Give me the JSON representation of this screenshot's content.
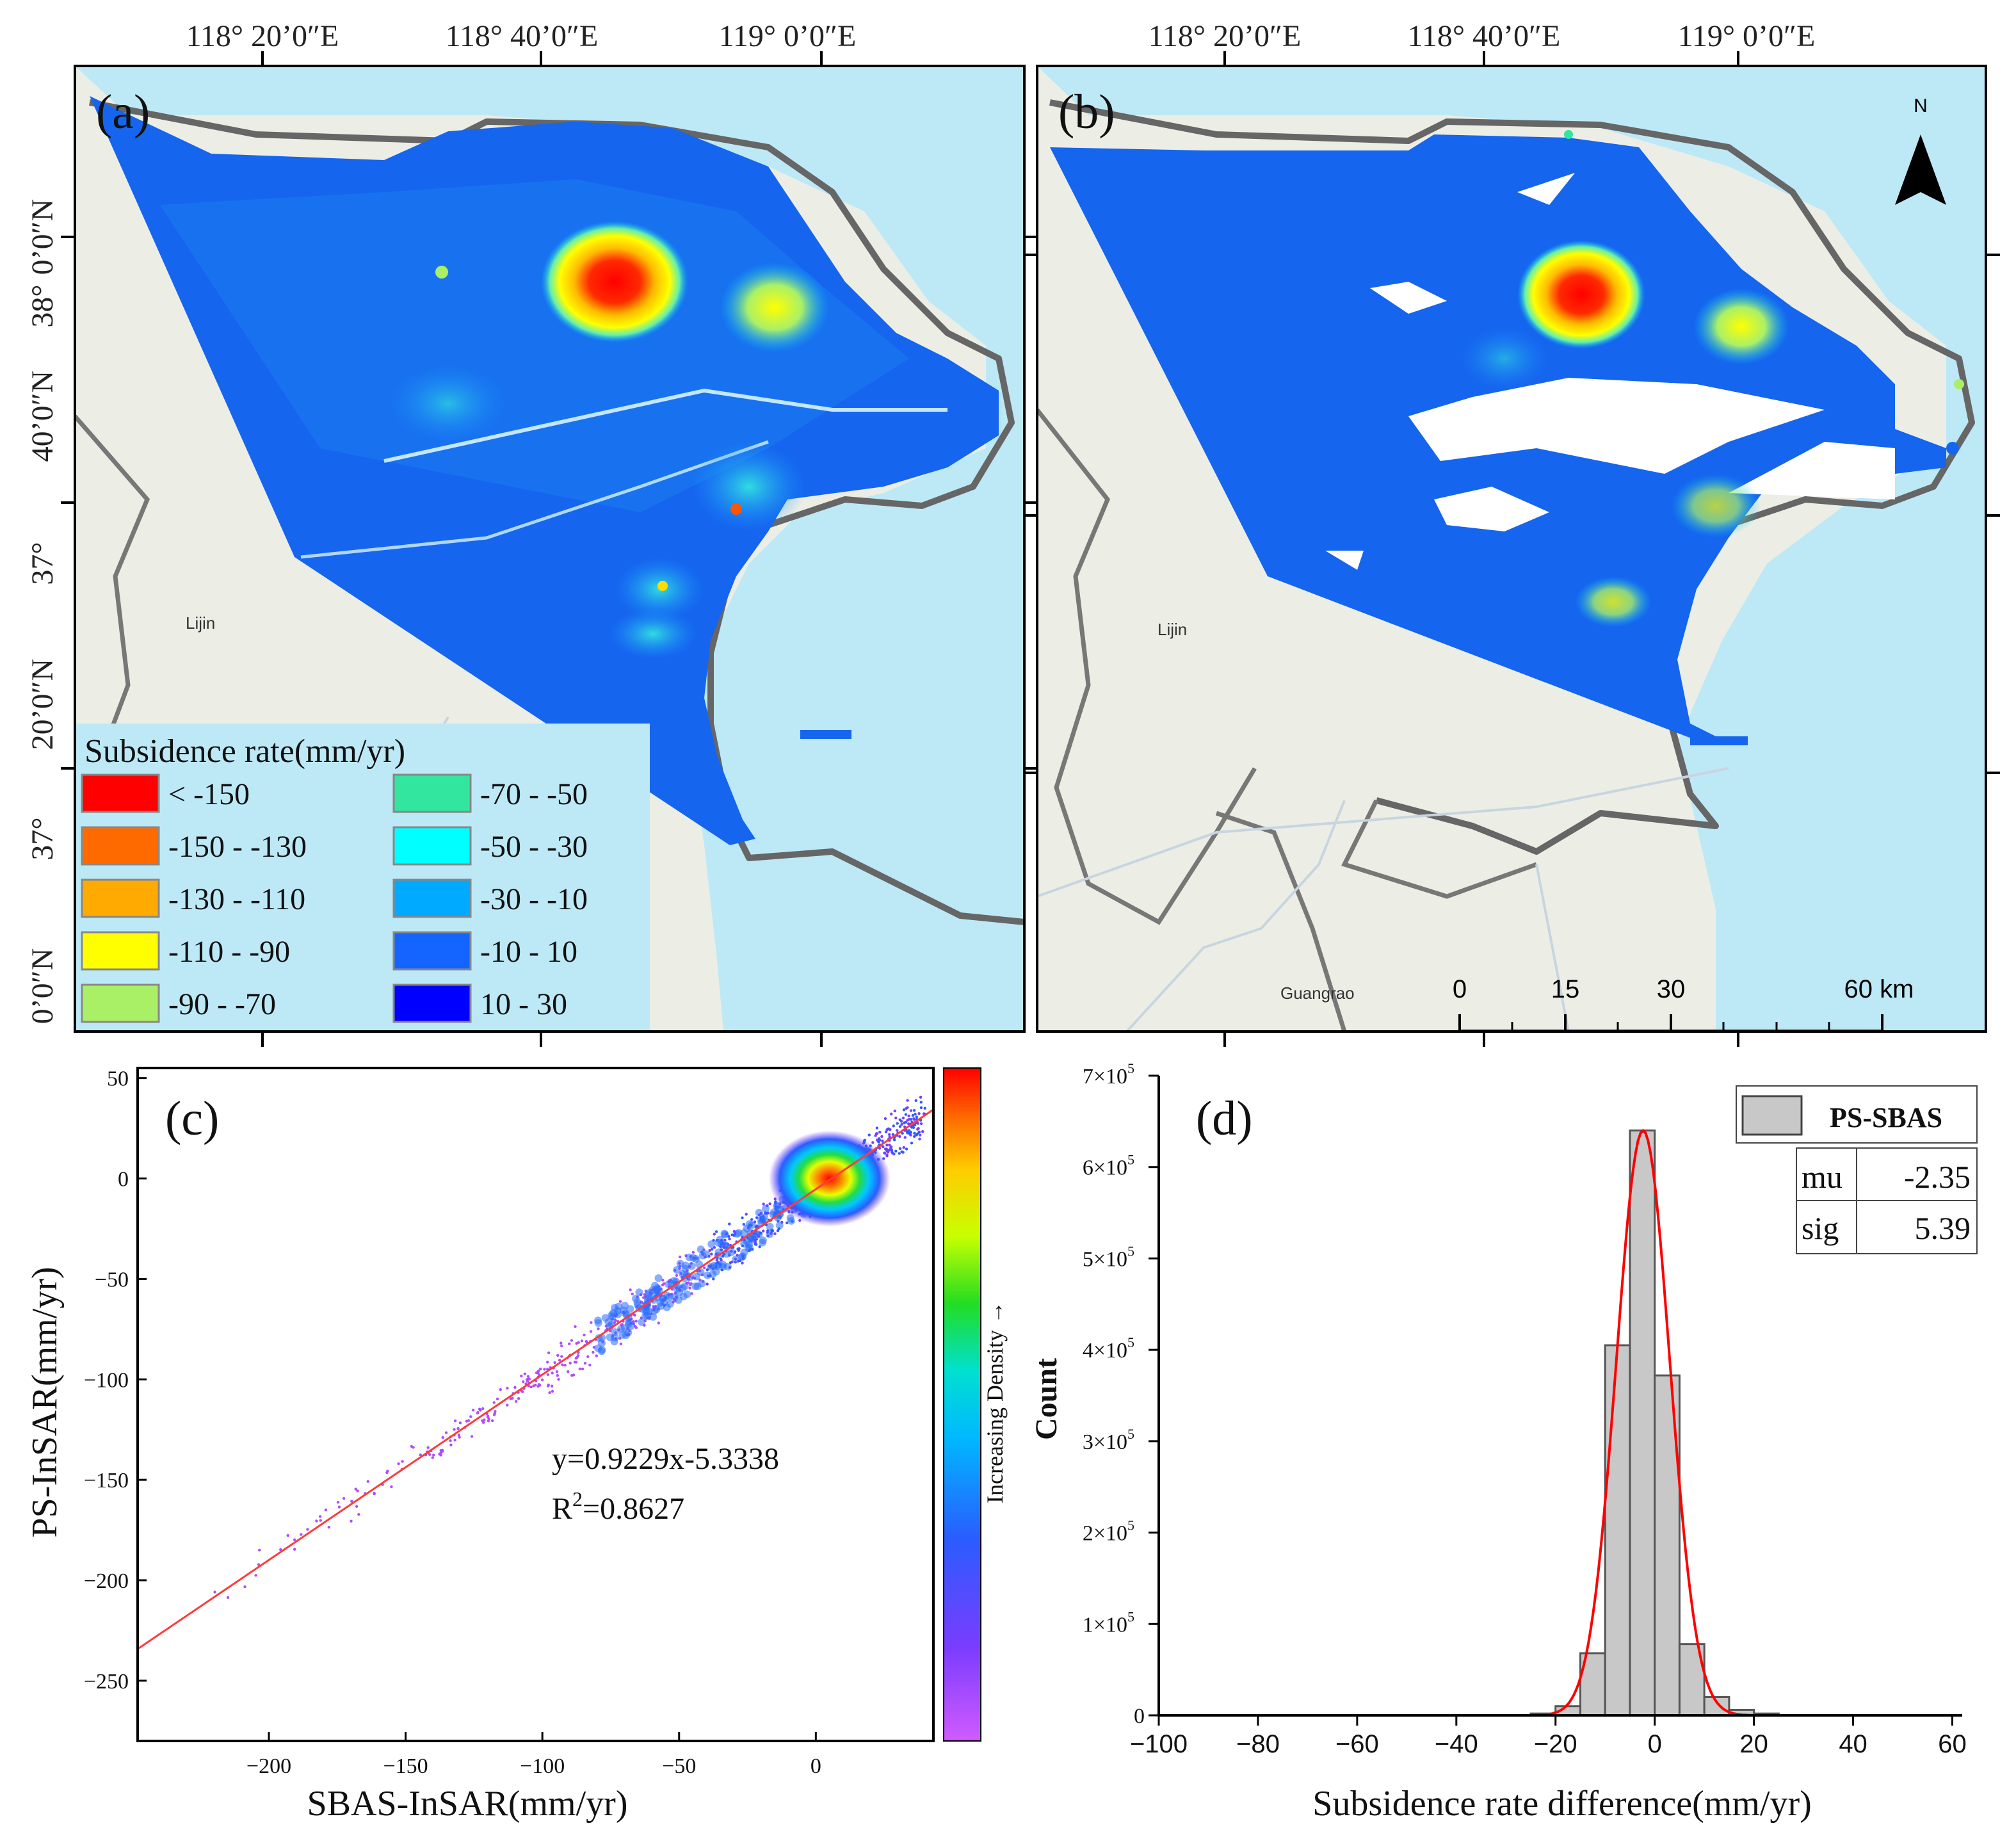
{
  "panels": {
    "a": {
      "label": "(a)"
    },
    "b": {
      "label": "(b)"
    },
    "c": {
      "label": "(c)"
    },
    "d": {
      "label": "(d)"
    }
  },
  "map_axes": {
    "top_ticks": [
      "118°  20’0″E",
      "118°  40’0″E",
      "119°  0’0″E"
    ],
    "left_ticks": [
      "38°  0’0″N",
      "37°  40’0″N",
      "37°  20’0″N"
    ],
    "left_tick_parts": [
      [
        "38°",
        "0’0″N"
      ],
      [
        "37°",
        "40’0″N"
      ],
      [
        "37°",
        "20’0″N"
      ]
    ]
  },
  "place_labels": {
    "lijin_a": "Lijin",
    "lijin_b": "Lijin",
    "guangrao": "Guangrao"
  },
  "north_arrow": {
    "label": "N"
  },
  "scale_bar": {
    "ticks": [
      "0",
      "15",
      "30",
      "60 km"
    ]
  },
  "legend": {
    "title": "Subsidence rate(mm/yr)",
    "items": [
      {
        "label": "< -150",
        "color": "#ff0000"
      },
      {
        "label": "-150  -  -130",
        "color": "#ff6a00"
      },
      {
        "label": "-130  -  -110",
        "color": "#ffaa00"
      },
      {
        "label": "-110  -  -90",
        "color": "#ffff00"
      },
      {
        "label": "-90  -  -70",
        "color": "#aaf067"
      },
      {
        "label": "-70  -  -50",
        "color": "#33e6a0"
      },
      {
        "label": "-50  -  -30",
        "color": "#00ffff"
      },
      {
        "label": "-30  -  -10",
        "color": "#00aaff"
      },
      {
        "label": "-10  -  10",
        "color": "#1464ff"
      },
      {
        "label": "10  -  30",
        "color": "#0000ff"
      }
    ]
  },
  "chart_data": [
    {
      "type": "scatter",
      "panel": "c",
      "title": "",
      "xlabel": "SBAS-InSAR(mm/yr)",
      "ylabel": "PS-InSAR(mm/yr)",
      "xlim": [
        -248,
        43
      ],
      "ylim": [
        -280,
        55
      ],
      "xticks": [
        -200,
        -150,
        -100,
        -50,
        0
      ],
      "yticks": [
        50,
        0,
        -50,
        -100,
        -150,
        -200,
        -250
      ],
      "colorbar_label": "Increasing Density →",
      "fit": {
        "slope": 0.9229,
        "intercept": -5.3338
      },
      "equation": "y=0.9229x-5.3338",
      "r2_prefix": "R",
      "r2_sup": "2",
      "r2_value": "=0.8627",
      "density_core": {
        "x": 5,
        "y": 0
      }
    },
    {
      "type": "bar",
      "panel": "d",
      "subtype": "histogram",
      "xlabel": "Subsidence rate difference(mm/yr)",
      "ylabel": "Count",
      "xlim": [
        -100,
        62
      ],
      "ylim": [
        0,
        700000
      ],
      "xticks": [
        -100,
        -80,
        -60,
        -40,
        -20,
        0,
        20,
        40,
        60
      ],
      "yticks": [
        {
          "value": 0,
          "label": "0"
        },
        {
          "value": 100000,
          "label": "1×10",
          "exp": "5"
        },
        {
          "value": 200000,
          "label": "2×10",
          "exp": "5"
        },
        {
          "value": 300000,
          "label": "3×10",
          "exp": "5"
        },
        {
          "value": 400000,
          "label": "4×10",
          "exp": "5"
        },
        {
          "value": 500000,
          "label": "5×10",
          "exp": "5"
        },
        {
          "value": 600000,
          "label": "6×10",
          "exp": "5"
        },
        {
          "value": 700000,
          "label": "7×10",
          "exp": "5"
        }
      ],
      "bin_width": 5,
      "bins_left": [
        -25,
        -20,
        -15,
        -10,
        -5,
        0,
        5,
        10,
        15,
        20
      ],
      "counts": [
        2000,
        10000,
        68000,
        405000,
        640000,
        372000,
        78000,
        20000,
        6000,
        2000
      ],
      "series_name": "PS-SBAS",
      "stats": [
        {
          "name": "mu",
          "value": "-2.35"
        },
        {
          "name": "sig",
          "value": "5.39"
        }
      ],
      "gauss": {
        "mu": -2.35,
        "sigma": 5.39,
        "peak": 640000
      }
    }
  ]
}
